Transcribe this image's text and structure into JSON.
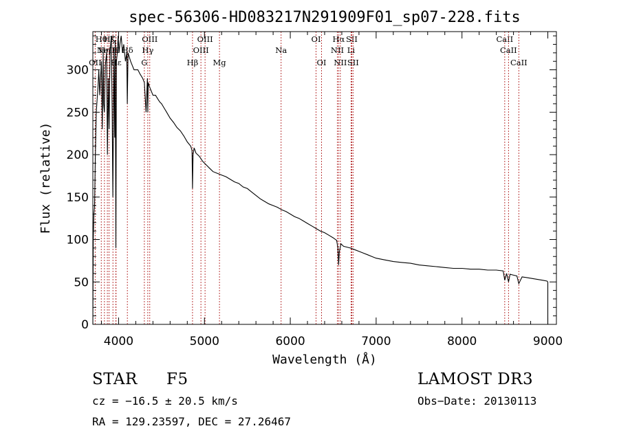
{
  "chart_data": {
    "type": "line",
    "title": "spec-56306-HD083217N291909F01_sp07-228.fits",
    "xlabel": "Wavelength (Å)",
    "ylabel": "Flux (relative)",
    "xlim": [
      3700,
      9100
    ],
    "ylim": [
      0,
      345
    ],
    "xticks": [
      4000,
      5000,
      6000,
      7000,
      8000,
      9000
    ],
    "yticks": [
      0,
      50,
      100,
      150,
      200,
      250,
      300
    ],
    "series": [
      {
        "name": "flux",
        "x": [
          3700,
          3705,
          3712,
          3720,
          3730,
          3740,
          3750,
          3760,
          3770,
          3780,
          3790,
          3800,
          3810,
          3820,
          3826,
          3835,
          3845,
          3860,
          3870,
          3880,
          3889,
          3900,
          3915,
          3925,
          3933,
          3945,
          3955,
          3960,
          3968,
          3975,
          3985,
          3995,
          4005,
          4015,
          4030,
          4045,
          4060,
          4080,
          4095,
          4101,
          4110,
          4125,
          4140,
          4160,
          4180,
          4200,
          4225,
          4250,
          4280,
          4300,
          4320,
          4335,
          4340,
          4345,
          4360,
          4380,
          4400,
          4430,
          4460,
          4480,
          4500,
          4530,
          4560,
          4600,
          4640,
          4680,
          4720,
          4760,
          4800,
          4840,
          4855,
          4861,
          4867,
          4880,
          4900,
          4940,
          4980,
          5020,
          5060,
          5100,
          5150,
          5200,
          5250,
          5300,
          5350,
          5400,
          5450,
          5500,
          5550,
          5600,
          5650,
          5700,
          5750,
          5800,
          5850,
          5900,
          5950,
          6000,
          6050,
          6100,
          6150,
          6200,
          6250,
          6300,
          6350,
          6400,
          6450,
          6500,
          6540,
          6555,
          6563,
          6571,
          6590,
          6620,
          6660,
          6700,
          6750,
          6800,
          6850,
          6900,
          6950,
          7000,
          7100,
          7200,
          7300,
          7400,
          7500,
          7600,
          7700,
          7800,
          7900,
          8000,
          8100,
          8200,
          8300,
          8400,
          8480,
          8498,
          8520,
          8542,
          8560,
          8600,
          8640,
          8662,
          8700,
          8760,
          8820,
          8880,
          8940,
          8990,
          9000,
          9000
        ],
        "values": [
          0,
          100,
          130,
          140,
          200,
          250,
          265,
          280,
          300,
          270,
          290,
          310,
          230,
          320,
          260,
          250,
          305,
          320,
          200,
          290,
          230,
          320,
          340,
          250,
          150,
          320,
          220,
          335,
          90,
          310,
          320,
          340,
          320,
          330,
          340,
          320,
          330,
          310,
          320,
          260,
          320,
          315,
          310,
          305,
          300,
          300,
          300,
          295,
          290,
          285,
          250,
          290,
          250,
          285,
          280,
          275,
          270,
          270,
          265,
          262,
          260,
          255,
          250,
          243,
          238,
          232,
          228,
          222,
          215,
          210,
          205,
          160,
          200,
          208,
          202,
          198,
          192,
          188,
          184,
          180,
          178,
          176,
          174,
          171,
          168,
          166,
          162,
          160,
          156,
          152,
          148,
          145,
          142,
          140,
          138,
          135,
          133,
          130,
          127,
          125,
          122,
          119,
          116,
          113,
          110,
          108,
          105,
          102,
          99,
          90,
          70,
          85,
          95,
          92,
          91,
          90,
          88,
          86,
          84,
          82,
          80,
          78,
          76,
          74,
          73,
          72,
          70,
          69,
          68,
          67,
          66,
          66,
          65,
          65,
          64,
          64,
          63,
          52,
          60,
          50,
          59,
          58,
          57,
          48,
          56,
          55,
          54,
          53,
          52,
          51,
          50,
          0
        ]
      }
    ],
    "lines": [
      {
        "w": 3727,
        "label": "OII",
        "row": 3
      },
      {
        "w": 3798,
        "label": "Hθ",
        "row": 1
      },
      {
        "w": 3835,
        "label": "Hη",
        "row": 2
      },
      {
        "w": 3869,
        "label": "NeIII",
        "row": 2
      },
      {
        "w": 3889,
        "label": "Hζ",
        "row": 1
      },
      {
        "w": 3934,
        "label": "K",
        "row": 1
      },
      {
        "w": 3968,
        "label": "H",
        "row": 2
      },
      {
        "w": 3970,
        "label": "Hε",
        "row": 3
      },
      {
        "w": 4102,
        "label": "Hδ",
        "row": 2
      },
      {
        "w": 4300,
        "label": "G",
        "row": 3
      },
      {
        "w": 4340,
        "label": "Hγ",
        "row": 2
      },
      {
        "w": 4363,
        "label": "OIII",
        "row": 1
      },
      {
        "w": 4861,
        "label": "Hβ",
        "row": 3
      },
      {
        "w": 4959,
        "label": "OIII",
        "row": 2
      },
      {
        "w": 5007,
        "label": "OIII",
        "row": 1
      },
      {
        "w": 5175,
        "label": "Mg",
        "row": 3
      },
      {
        "w": 5893,
        "label": "Na",
        "row": 2
      },
      {
        "w": 6300,
        "label": "OI",
        "row": 1
      },
      {
        "w": 6364,
        "label": "OI",
        "row": 3
      },
      {
        "w": 6548,
        "label": "NII",
        "row": 2
      },
      {
        "w": 6563,
        "label": "Hα",
        "row": 1
      },
      {
        "w": 6583,
        "label": "NII",
        "row": 3
      },
      {
        "w": 6708,
        "label": "Li",
        "row": 2
      },
      {
        "w": 6716,
        "label": "SII",
        "row": 1
      },
      {
        "w": 6731,
        "label": "SII",
        "row": 3
      },
      {
        "w": 8498,
        "label": "CaII",
        "row": 1
      },
      {
        "w": 8542,
        "label": "CaII",
        "row": 2
      },
      {
        "w": 8662,
        "label": "CaII",
        "row": 3
      }
    ]
  },
  "info": {
    "class_label": "STAR",
    "subclass": "F5",
    "survey": "LAMOST DR3",
    "cz": "cz = −16.5 ± 20.5 km/s",
    "obs_date": "Obs−Date: 20130113",
    "radec": "RA = 129.23597, DEC =  27.26467"
  }
}
